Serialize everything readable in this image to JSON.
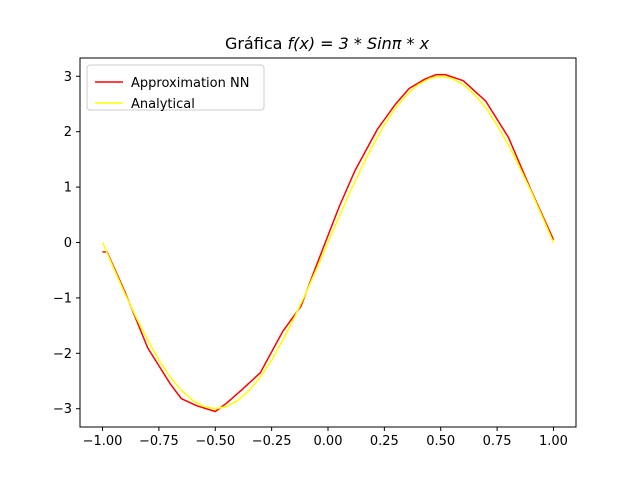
{
  "chart_data": {
    "type": "line",
    "title": "Gráfica f(x) = 3 * Sinπ * x",
    "title_parts": {
      "prefix": "Gráfica ",
      "math": "f(x) = 3 * Sinπ * x"
    },
    "xlabel": "",
    "ylabel": "",
    "xlim": [
      -1.1,
      1.1
    ],
    "ylim": [
      -3.33,
      3.33
    ],
    "xticks": [
      -1.0,
      -0.75,
      -0.5,
      -0.25,
      0.0,
      0.25,
      0.5,
      0.75,
      1.0
    ],
    "xtick_labels": [
      "−1.00",
      "−0.75",
      "−0.50",
      "−0.25",
      "0.00",
      "0.25",
      "0.50",
      "0.75",
      "1.00"
    ],
    "yticks": [
      -3,
      -2,
      -1,
      0,
      1,
      2,
      3
    ],
    "ytick_labels": [
      "−3",
      "−2",
      "−1",
      "0",
      "1",
      "2",
      "3"
    ],
    "grid": false,
    "legend_position": "top-left",
    "series": [
      {
        "name": "Approximation NN",
        "color": "#ff0000",
        "x": [
          -1.0,
          -0.98,
          -0.9,
          -0.8,
          -0.7,
          -0.65,
          -0.58,
          -0.5,
          -0.45,
          -0.38,
          -0.3,
          -0.2,
          -0.12,
          -0.05,
          0.05,
          0.12,
          0.22,
          0.3,
          0.36,
          0.43,
          0.48,
          0.52,
          0.6,
          0.7,
          0.8,
          0.9,
          1.0
        ],
        "y": [
          -0.17,
          -0.17,
          -0.9,
          -1.9,
          -2.55,
          -2.82,
          -2.95,
          -3.05,
          -2.9,
          -2.65,
          -2.35,
          -1.6,
          -1.15,
          -0.4,
          0.65,
          1.3,
          2.05,
          2.5,
          2.78,
          2.95,
          3.03,
          3.03,
          2.92,
          2.55,
          1.9,
          0.95,
          0.05
        ]
      },
      {
        "name": "Analytical",
        "color": "#ffff00",
        "x": [
          -1.0,
          -0.95,
          -0.9,
          -0.85,
          -0.8,
          -0.75,
          -0.7,
          -0.65,
          -0.6,
          -0.55,
          -0.5,
          -0.45,
          -0.4,
          -0.35,
          -0.3,
          -0.25,
          -0.2,
          -0.15,
          -0.1,
          -0.05,
          0.0,
          0.05,
          0.1,
          0.15,
          0.2,
          0.25,
          0.3,
          0.35,
          0.4,
          0.45,
          0.5,
          0.55,
          0.6,
          0.65,
          0.7,
          0.75,
          0.8,
          0.85,
          0.9,
          0.95,
          1.0
        ],
        "y": [
          0.0,
          -0.47,
          -0.93,
          -1.36,
          -1.76,
          -2.12,
          -2.43,
          -2.67,
          -2.85,
          -2.96,
          -3.0,
          -2.96,
          -2.85,
          -2.67,
          -2.43,
          -2.12,
          -1.76,
          -1.36,
          -0.93,
          -0.47,
          0.0,
          0.47,
          0.93,
          1.36,
          1.76,
          2.12,
          2.43,
          2.67,
          2.85,
          2.96,
          3.0,
          2.96,
          2.85,
          2.67,
          2.43,
          2.12,
          1.76,
          1.36,
          0.93,
          0.47,
          0.0
        ]
      }
    ]
  }
}
